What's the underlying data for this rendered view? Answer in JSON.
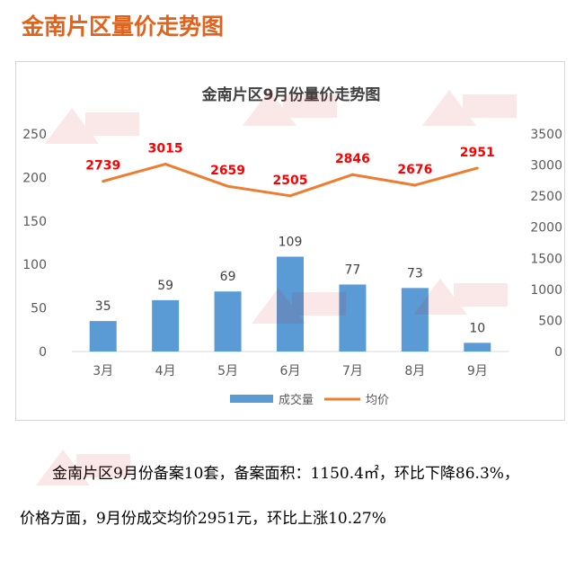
{
  "page": {
    "heading": "金南片区量价走势图",
    "paragraph_1": "金南片区9月份备案10套，备案面积：1150.4㎡，环比下降86.3%，",
    "paragraph_2": "价格方面，9月份成交均价2951元，环比上涨10.27%"
  },
  "colors": {
    "heading": "#e3621b",
    "bar": "#5b9bd5",
    "line": "#ed7d31",
    "line_label": "#ff0000",
    "axis_text": "#595959",
    "gridline": "#d9d9d9"
  },
  "chart_data": {
    "type": "bar+line",
    "title": "金南片区9月份量价走势图",
    "categories": [
      "3月",
      "4月",
      "5月",
      "6月",
      "7月",
      "8月",
      "9月"
    ],
    "series": [
      {
        "name": "成交量",
        "type": "bar",
        "axis": "left",
        "values": [
          35,
          59,
          69,
          109,
          77,
          73,
          10
        ]
      },
      {
        "name": "均价",
        "type": "line",
        "axis": "right",
        "values": [
          2739,
          3015,
          2659,
          2505,
          2846,
          2676,
          2951
        ]
      }
    ],
    "y_left": {
      "min": 0,
      "max": 250,
      "ticks": [
        0,
        50,
        100,
        150,
        200,
        250
      ]
    },
    "y_right": {
      "min": 0,
      "max": 3500,
      "ticks": [
        0,
        500,
        1000,
        1500,
        2000,
        2500,
        3000,
        3500
      ]
    },
    "grid": false,
    "legend_position": "bottom"
  }
}
